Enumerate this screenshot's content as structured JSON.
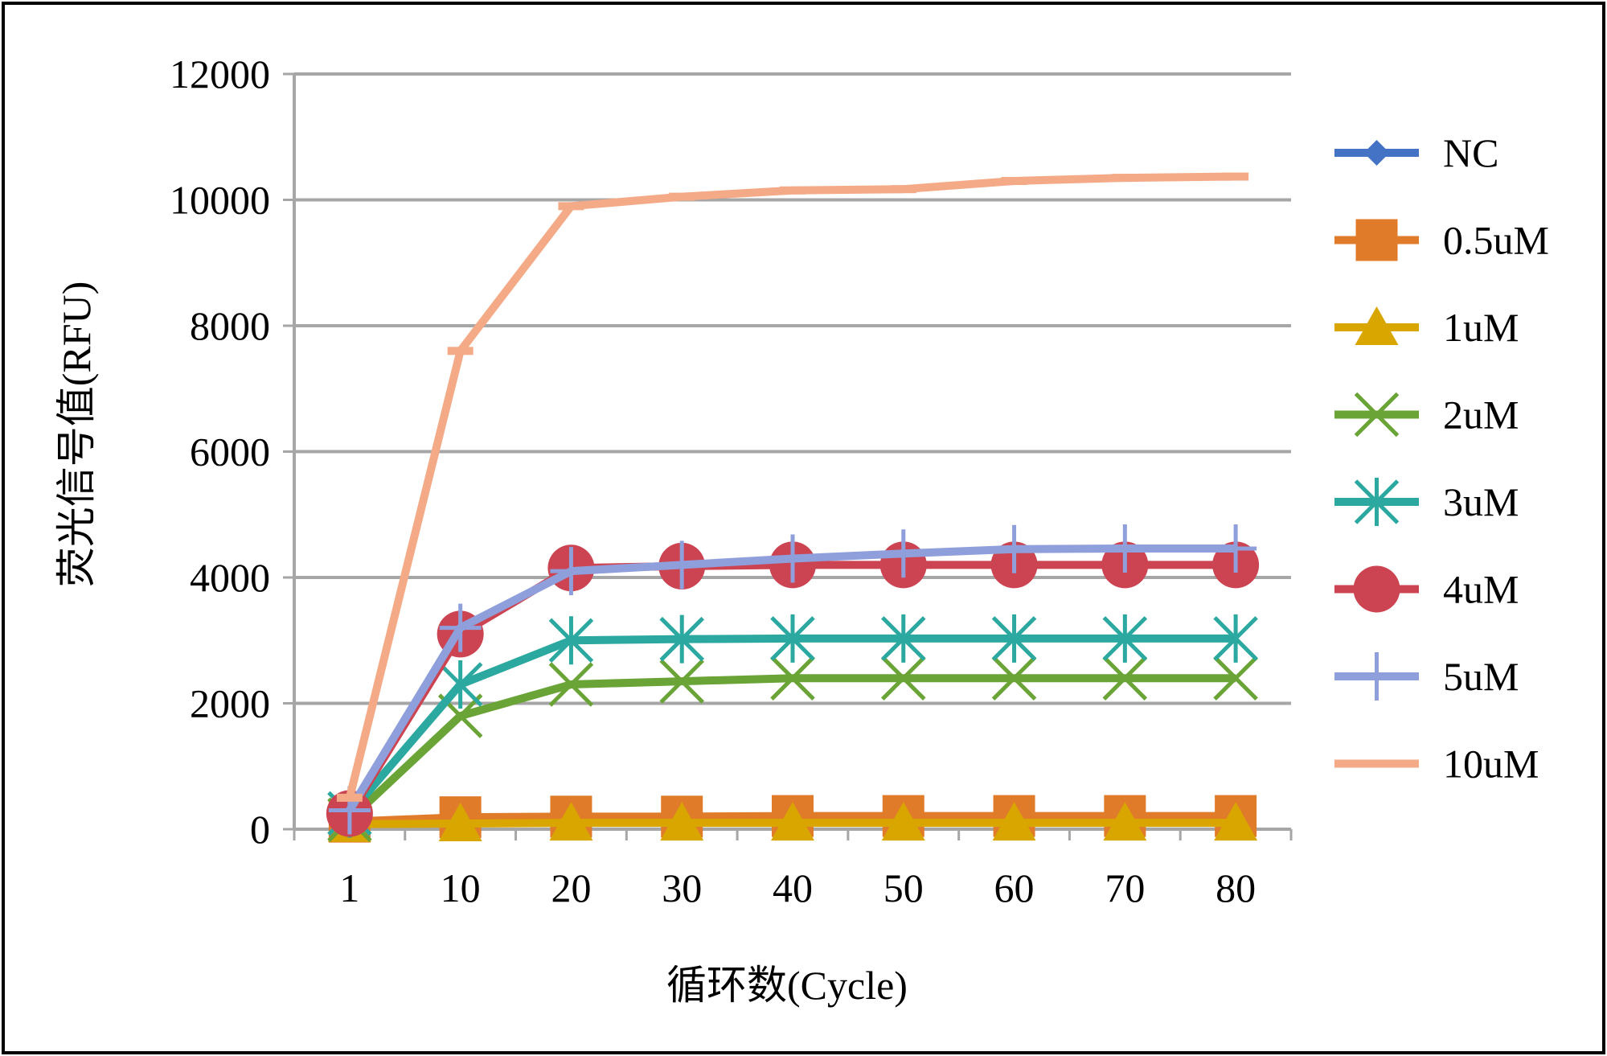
{
  "chart_data": {
    "type": "line",
    "title": "",
    "xlabel": "循环数(Cycle)",
    "ylabel": "荧光信号值(RFU)",
    "categories": [
      "1",
      "10",
      "20",
      "30",
      "40",
      "50",
      "60",
      "70",
      "80"
    ],
    "ylim": [
      0,
      12000
    ],
    "yticks": [
      "0",
      "2000",
      "4000",
      "6000",
      "8000",
      "10000",
      "12000"
    ],
    "grid": true,
    "legend_position": "right",
    "series": [
      {
        "name": "NC",
        "color": "#4472C4",
        "marker": "diamond",
        "values": [
          100,
          100,
          100,
          100,
          100,
          100,
          100,
          100,
          100
        ]
      },
      {
        "name": "0.5uM",
        "color": "#E07B2A",
        "marker": "square",
        "values": [
          120,
          190,
          200,
          200,
          210,
          210,
          210,
          210,
          210
        ]
      },
      {
        "name": "1uM",
        "color": "#D9A600",
        "marker": "triangle",
        "values": [
          80,
          90,
          100,
          100,
          100,
          100,
          100,
          100,
          100
        ]
      },
      {
        "name": "2uM",
        "color": "#6AA336",
        "marker": "x",
        "values": [
          150,
          1800,
          2300,
          2350,
          2400,
          2400,
          2400,
          2400,
          2400
        ]
      },
      {
        "name": "3uM",
        "color": "#2BA8A0",
        "marker": "star",
        "values": [
          250,
          2300,
          3000,
          3020,
          3030,
          3030,
          3030,
          3030,
          3030
        ]
      },
      {
        "name": "4uM",
        "color": "#CC4452",
        "marker": "circle",
        "values": [
          250,
          3100,
          4150,
          4180,
          4200,
          4200,
          4200,
          4200,
          4200
        ]
      },
      {
        "name": "5uM",
        "color": "#8F9FDB",
        "marker": "plus",
        "values": [
          300,
          3200,
          4100,
          4200,
          4300,
          4380,
          4450,
          4460,
          4460
        ]
      },
      {
        "name": "10uM",
        "color": "#F4AA86",
        "marker": "dash",
        "values": [
          500,
          7600,
          9900,
          10050,
          10150,
          10170,
          10300,
          10350,
          10370
        ]
      }
    ]
  }
}
